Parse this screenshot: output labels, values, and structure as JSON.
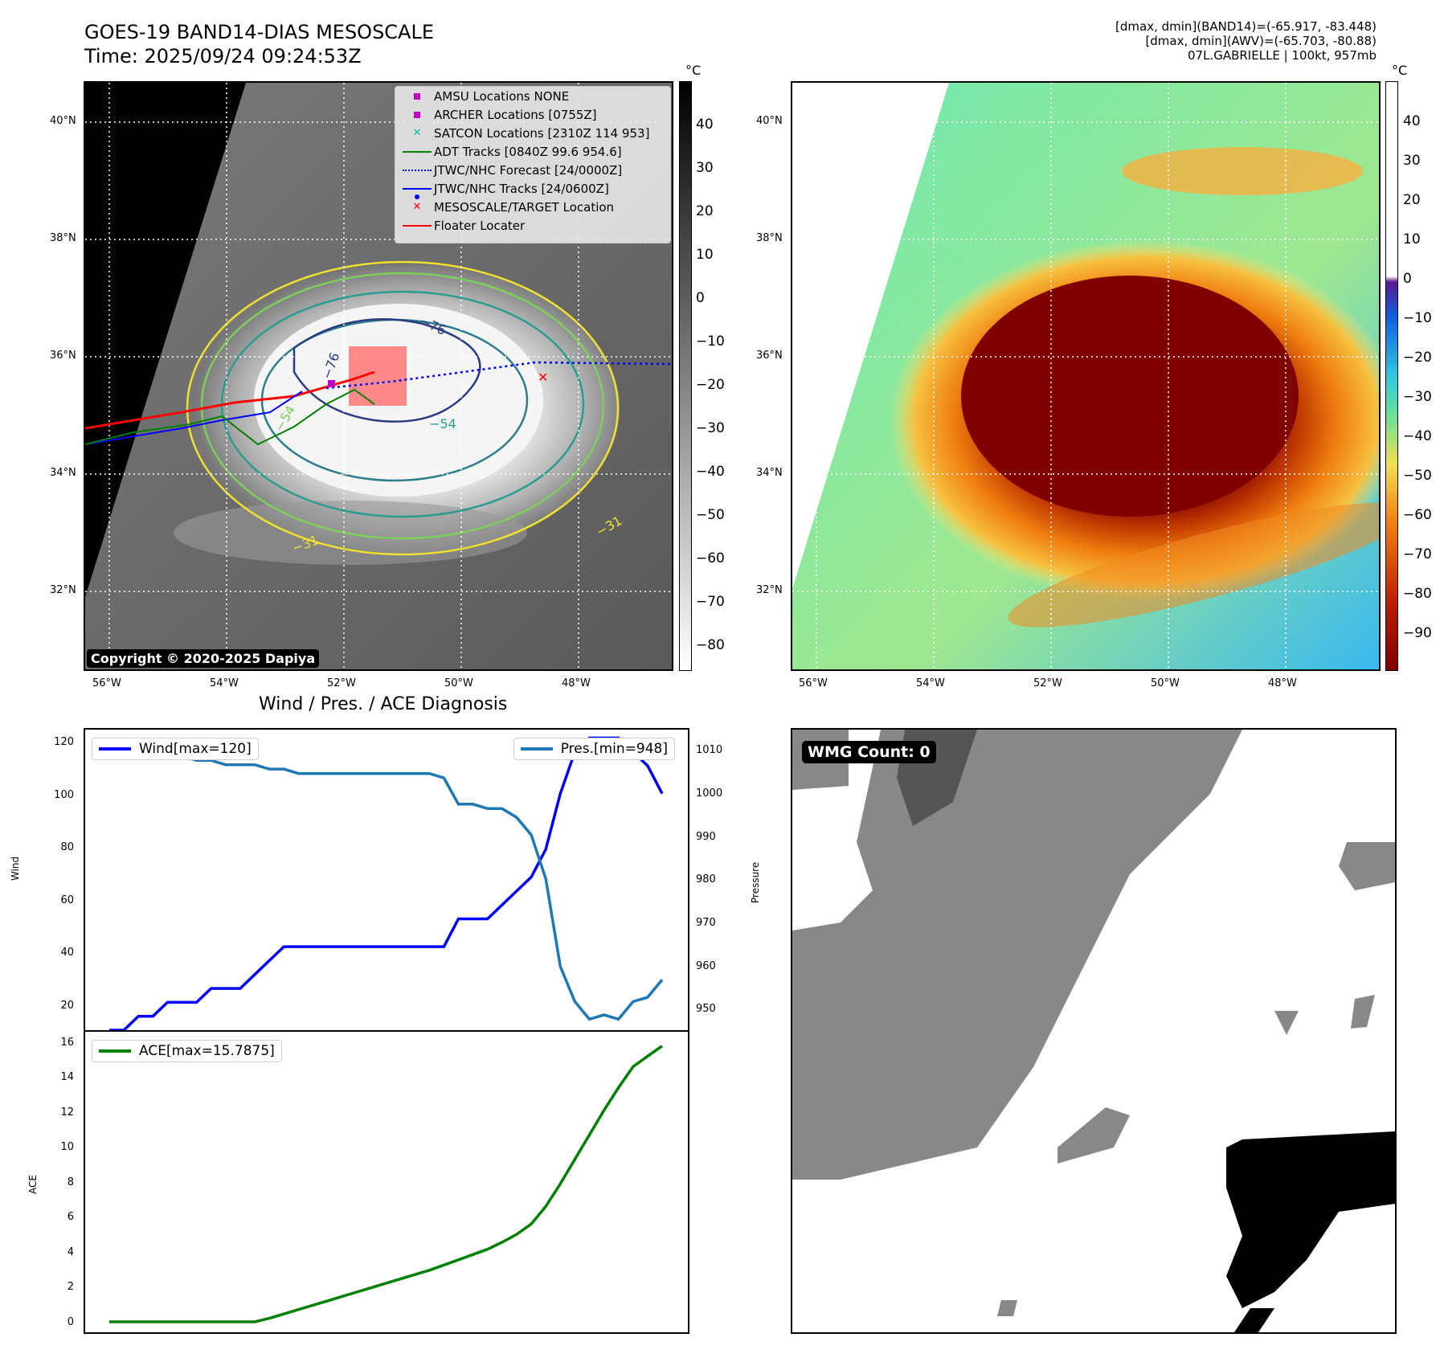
{
  "top_left": {
    "title_line1": "GOES-19 BAND14-DIAS MESOSCALE",
    "title_line2": "Time: 2025/09/24 09:24:53Z",
    "lat_labels": [
      "40°N",
      "38°N",
      "36°N",
      "34°N",
      "32°N"
    ],
    "lon_labels": [
      "56°W",
      "54°W",
      "52°W",
      "50°W",
      "48°W"
    ],
    "colorbar_unit": "°C",
    "colorbar_ticks": [
      "40",
      "30",
      "20",
      "10",
      "0",
      "−10",
      "−20",
      "−30",
      "−40",
      "−50",
      "−60",
      "−70",
      "−80"
    ],
    "contour_labels": [
      "−76",
      "−76",
      "−54",
      "−31",
      "−31",
      "−54"
    ],
    "copyright": "Copyright © 2020-2025 Dapiya",
    "legend": [
      {
        "label": "AMSU Locations NONE",
        "marker": "square",
        "color": "#c000c0"
      },
      {
        "label": "ARCHER Locations [0755Z]",
        "marker": "square",
        "color": "#c000c0"
      },
      {
        "label": "SATCON Locations [2310Z 114 953]",
        "marker": "x",
        "color": "#00b5b5"
      },
      {
        "label": "ADT Tracks [0840Z 99.6 954.6]",
        "marker": "line",
        "color": "#008000"
      },
      {
        "label": "JTWC/NHC Forecast [24/0000Z]",
        "marker": "dotted",
        "color": "#0000ff"
      },
      {
        "label": "JTWC/NHC Tracks [24/0600Z]",
        "marker": "line-dot",
        "color": "#0000ff"
      },
      {
        "label": "MESOSCALE/TARGET Location",
        "marker": "x",
        "color": "#ff0000"
      },
      {
        "label": "Floater Locater",
        "marker": "line",
        "color": "#ff0000"
      }
    ]
  },
  "top_right": {
    "header_line1": "[dmax, dmin](BAND14)=(-65.917, -83.448)",
    "header_line2": "[dmax, dmin](AWV)=(-65.703, -80.88)",
    "header_line3": "07L.GABRIELLE | 100kt, 957mb",
    "lat_labels": [
      "40°N",
      "38°N",
      "36°N",
      "34°N",
      "32°N"
    ],
    "lon_labels": [
      "56°W",
      "54°W",
      "52°W",
      "50°W",
      "48°W"
    ],
    "colorbar_unit": "°C",
    "colorbar_ticks": [
      "40",
      "30",
      "20",
      "10",
      "0",
      "−10",
      "−20",
      "−30",
      "−40",
      "−50",
      "−60",
      "−70",
      "−80",
      "−90"
    ]
  },
  "bottom_left": {
    "title": "Wind / Pres. / ACE Diagnosis",
    "wind_label": "Wind",
    "pressure_label": "Pressure",
    "ace_label": "ACE",
    "wind_ticks": [
      "120",
      "100",
      "80",
      "60",
      "40",
      "20"
    ],
    "pressure_ticks": [
      "1010",
      "1000",
      "990",
      "980",
      "970",
      "960",
      "950"
    ],
    "ace_ticks": [
      "16",
      "14",
      "12",
      "10",
      "8",
      "6",
      "4",
      "2",
      "0"
    ]
  },
  "bottom_right": {
    "wmg_label": "WMG Count: 0"
  },
  "chart_data": [
    {
      "type": "line",
      "title": "Wind / Pres. / ACE Diagnosis",
      "ylabel": "Wind",
      "y2label": "Pressure",
      "ylim": [
        15,
        123
      ],
      "y2lim": [
        945.5,
        1014
      ],
      "series": [
        {
          "name": "Wind[max=120]",
          "color": "#0000ff",
          "axis": "left",
          "values": [
            15,
            15,
            20,
            20,
            25,
            25,
            25,
            30,
            30,
            30,
            35,
            40,
            45,
            45,
            45,
            45,
            45,
            45,
            45,
            45,
            45,
            45,
            45,
            45,
            55,
            55,
            55,
            60,
            65,
            70,
            80,
            100,
            115,
            120,
            120,
            120,
            115,
            110,
            100
          ]
        },
        {
          "name": "Pres.[min=948]",
          "color": "#1f77b4",
          "axis": "right",
          "values": [
            1010,
            1010,
            1009,
            1009,
            1008,
            1008,
            1007,
            1007,
            1006,
            1006,
            1006,
            1005,
            1005,
            1004,
            1004,
            1004,
            1004,
            1004,
            1004,
            1004,
            1004,
            1004,
            1004,
            1003,
            997,
            997,
            996,
            996,
            994,
            990,
            980,
            960,
            952,
            948,
            949,
            948,
            952,
            953,
            957
          ]
        }
      ]
    },
    {
      "type": "line",
      "ylabel": "ACE",
      "ylim": [
        -0.6,
        16.6
      ],
      "series": [
        {
          "name": "ACE[max=15.7875]",
          "color": "#008000",
          "values": [
            0,
            0,
            0,
            0,
            0,
            0,
            0,
            0,
            0,
            0,
            0,
            0.2,
            0.45,
            0.7,
            0.95,
            1.2,
            1.45,
            1.7,
            1.95,
            2.2,
            2.45,
            2.7,
            2.95,
            3.25,
            3.55,
            3.85,
            4.15,
            4.55,
            5.0,
            5.6,
            6.6,
            7.9,
            9.3,
            10.7,
            12.1,
            13.4,
            14.6,
            15.2,
            15.7875
          ]
        }
      ]
    }
  ]
}
